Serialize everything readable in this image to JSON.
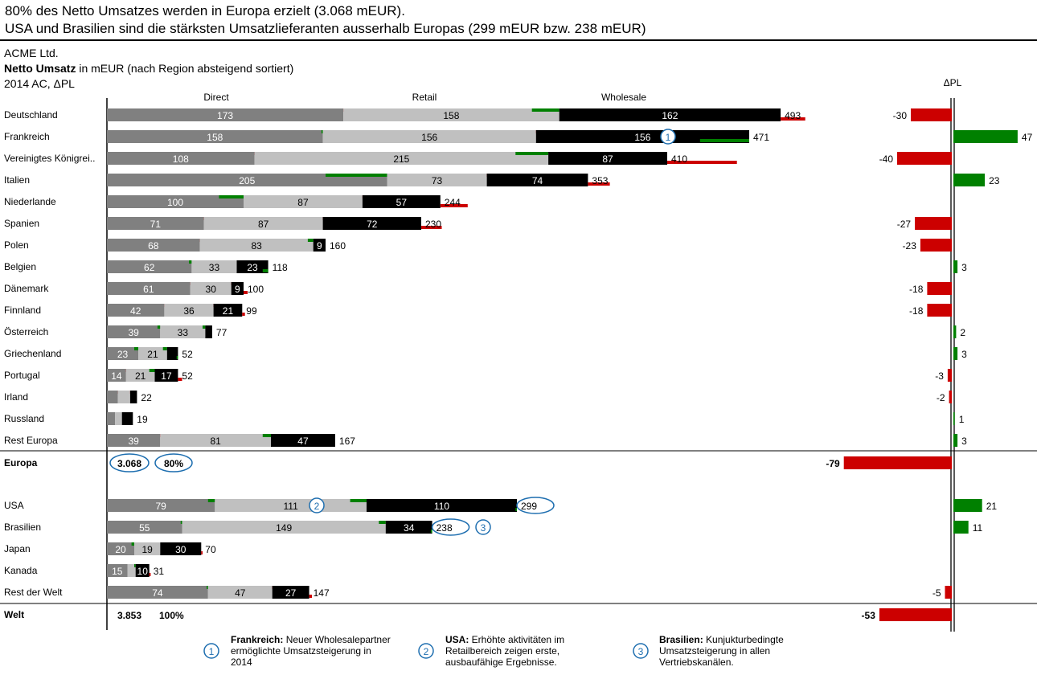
{
  "headline": {
    "line1": "80% des Netto Umsatzes werden in Europa erzielt (3.068 mEUR).",
    "line2": "USA und Brasilien sind die stärksten Umsatzlieferanten ausserhalb Europas (299 mEUR bzw. 238 mEUR)"
  },
  "meta": {
    "company": "ACME Ltd.",
    "measure_bold": "Netto Umsatz",
    "measure_rest": " in mEUR (nach Region absteigend sortiert)",
    "period": "2014 AC, ΔPL"
  },
  "colors": {
    "direct": "#808080",
    "retail": "#c0c0c0",
    "wholesale": "#000000",
    "positive": "#008000",
    "negative": "#cc0000",
    "highlight": "#1f6fb0"
  },
  "chart_data": {
    "type": "bar",
    "stacking": "stacked-horizontal",
    "series": [
      {
        "name": "Direct"
      },
      {
        "name": "Retail"
      },
      {
        "name": "Wholesale"
      }
    ],
    "delta_title": "ΔPL",
    "rows": [
      {
        "label": "Deutschland",
        "direct": 173,
        "retail": 158,
        "wholesale": 162,
        "total": 493,
        "d_direct": 16,
        "d_retail": -20,
        "d_wholesale": 18,
        "dpl": -30,
        "show_labels": true
      },
      {
        "label": "Frankreich",
        "direct": 158,
        "retail": 156,
        "wholesale": 156,
        "total": 471,
        "d_direct": -1,
        "d_retail": 8,
        "d_wholesale": -36,
        "dpl": 47,
        "show_labels": true,
        "marker": "1"
      },
      {
        "label": "Vereinigtes Königrei..",
        "direct": 108,
        "retail": 215,
        "wholesale": 87,
        "total": 410,
        "d_direct": 12,
        "d_retail": -24,
        "d_wholesale": 51,
        "dpl": -40,
        "show_labels": true
      },
      {
        "label": "Italien",
        "direct": 205,
        "retail": 73,
        "wholesale": 74,
        "total": 353,
        "d_direct": -45,
        "d_retail": 6,
        "d_wholesale": 16,
        "dpl": 23,
        "show_labels": true
      },
      {
        "label": "Niederlande",
        "direct": 100,
        "retail": 87,
        "wholesale": 57,
        "total": 244,
        "d_direct": -18,
        "d_retail": 6,
        "d_wholesale": 20,
        "dpl": 0,
        "show_labels": true
      },
      {
        "label": "Spanien",
        "direct": 71,
        "retail": 87,
        "wholesale": 72,
        "total": 230,
        "d_direct": 9,
        "d_retail": 6,
        "d_wholesale": 15,
        "dpl": -27,
        "show_labels": true
      },
      {
        "label": "Polen",
        "direct": 68,
        "retail": 83,
        "wholesale": 9,
        "total": 160,
        "d_direct": 27,
        "d_retail": -4,
        "d_wholesale": 0,
        "dpl": -23,
        "show_labels": true
      },
      {
        "label": "Belgien",
        "direct": 62,
        "retail": 33,
        "wholesale": 23,
        "total": 118,
        "d_direct": -2,
        "d_retail": 3,
        "d_wholesale": -4,
        "dpl": 3,
        "show_labels": true
      },
      {
        "label": "Dänemark",
        "direct": 61,
        "retail": 30,
        "wholesale": 9,
        "total": 100,
        "d_direct": 11,
        "d_retail": 4,
        "d_wholesale": 3,
        "dpl": -18,
        "show_labels": true
      },
      {
        "label": "Finnland",
        "direct": 42,
        "retail": 36,
        "wholesale": 21,
        "total": 99,
        "d_direct": 12,
        "d_retail": 12,
        "d_wholesale": 2,
        "dpl": -18,
        "show_labels": true
      },
      {
        "label": "Österreich",
        "direct": 39,
        "retail": 33,
        "wholesale": 5,
        "total": 77,
        "d_direct": -2,
        "d_retail": -2,
        "d_wholesale": 0,
        "dpl": 2,
        "show_labels": true
      },
      {
        "label": "Griechenland",
        "direct": 23,
        "retail": 21,
        "wholesale": 8,
        "total": 52,
        "d_direct": -3,
        "d_retail": -3,
        "d_wholesale": -1,
        "dpl": 3,
        "show_labels": true
      },
      {
        "label": "Portugal",
        "direct": 14,
        "retail": 21,
        "wholesale": 17,
        "total": 52,
        "d_direct": 1,
        "d_retail": -4,
        "d_wholesale": 3,
        "dpl": -3,
        "show_labels": true
      },
      {
        "label": "Irland",
        "direct": 8,
        "retail": 9,
        "wholesale": 5,
        "total": 22,
        "d_direct": 1,
        "d_retail": 2,
        "d_wholesale": 0,
        "dpl": -2,
        "show_labels": false
      },
      {
        "label": "Russland",
        "direct": 6,
        "retail": 5,
        "wholesale": 8,
        "total": 19,
        "d_direct": 0,
        "d_retail": 0,
        "d_wholesale": 0,
        "dpl": 1,
        "show_labels": false
      },
      {
        "label": "Rest Europa",
        "direct": 39,
        "retail": 81,
        "wholesale": 47,
        "total": 167,
        "d_direct": 1,
        "d_retail": -6,
        "d_wholesale": 0,
        "dpl": 3,
        "show_labels": true
      }
    ],
    "europe": {
      "label": "Europa",
      "total": "3.068",
      "share": "80%",
      "dpl": -79
    },
    "rest_rows": [
      {
        "label": "USA",
        "direct": 79,
        "retail": 111,
        "wholesale": 110,
        "total": 299,
        "d_direct": -5,
        "d_retail": -12,
        "d_wholesale": -1,
        "dpl": 21,
        "show_labels": true,
        "marker": "2"
      },
      {
        "label": "Brasilien",
        "direct": 55,
        "retail": 149,
        "wholesale": 34,
        "total": 238,
        "d_direct": -1,
        "d_retail": -5,
        "d_wholesale": -1,
        "dpl": 11,
        "show_labels": true,
        "marker": "3"
      },
      {
        "label": "Japan",
        "direct": 20,
        "retail": 19,
        "wholesale": 30,
        "total": 70,
        "d_direct": -2,
        "d_retail": 0,
        "d_wholesale": 1,
        "dpl": 0,
        "show_labels": true
      },
      {
        "label": "Kanada",
        "direct": 15,
        "retail": 6,
        "wholesale": 10,
        "total": 31,
        "d_direct": 0,
        "d_retail": -1,
        "d_wholesale": 1,
        "dpl": 0,
        "show_labels": true
      },
      {
        "label": "Rest der Welt",
        "direct": 74,
        "retail": 47,
        "wholesale": 27,
        "total": 147,
        "d_direct": -1,
        "d_retail": 3,
        "d_wholesale": 2,
        "dpl": -5,
        "show_labels": true
      }
    ],
    "world": {
      "label": "Welt",
      "total": "3.853",
      "share": "100%",
      "dpl": -53
    },
    "dpl_label_hidden_rows": [
      "Niederlande",
      "Japan",
      "Kanada"
    ]
  },
  "footnotes": [
    {
      "num": "1",
      "bold": "Frankreich:",
      "text": " Neuer Wholesalepartner ermöglichte Umsatzsteigerung in 2014"
    },
    {
      "num": "2",
      "bold": "USA:",
      "text": " Erhöhte aktivitäten im Retailbereich zeigen erste, ausbaufähige Ergebnisse."
    },
    {
      "num": "3",
      "bold": "Brasilien:",
      "text": " Kunjukturbedingte Umsatzsteigerung in allen Vertriebskanälen."
    }
  ]
}
